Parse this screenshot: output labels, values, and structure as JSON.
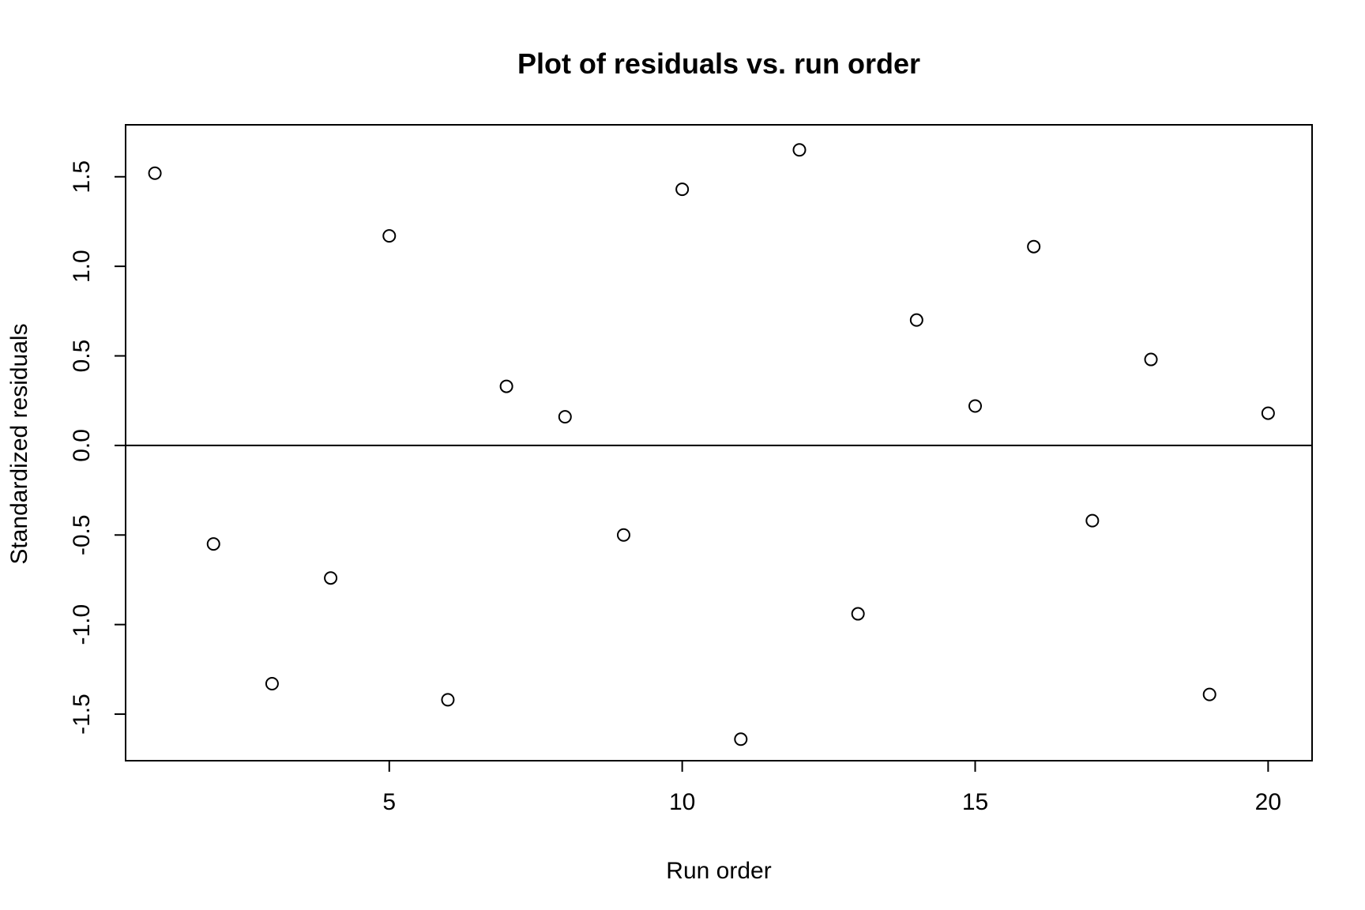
{
  "chart_data": {
    "type": "scatter",
    "title": "Plot of residuals vs. run order",
    "xlabel": "Run order",
    "ylabel": "Standardized residuals",
    "xlim": [
      0.5,
      20.75
    ],
    "ylim": [
      -1.76,
      1.79
    ],
    "x_ticks": [
      5,
      10,
      15,
      20
    ],
    "x_tick_labels": [
      "5",
      "10",
      "15",
      "20"
    ],
    "y_ticks": [
      -1.5,
      -1.0,
      -0.5,
      0.0,
      0.5,
      1.0,
      1.5
    ],
    "y_tick_labels": [
      "-1.5",
      "-1.0",
      "-0.5",
      "0.0",
      "0.5",
      "1.0",
      "1.5"
    ],
    "reference_line_y": 0,
    "marker": "open-circle",
    "grid": false,
    "series": [
      {
        "x": [
          1,
          2,
          3,
          4,
          5,
          6,
          7,
          8,
          9,
          10,
          11,
          12,
          13,
          14,
          15,
          16,
          17,
          18,
          19,
          20
        ],
        "y": [
          1.52,
          -0.55,
          -1.33,
          -0.74,
          1.17,
          -1.42,
          0.33,
          0.16,
          -0.5,
          1.43,
          -1.64,
          1.65,
          -0.94,
          0.7,
          0.22,
          1.11,
          -0.42,
          0.48,
          -1.39,
          0.18
        ]
      }
    ]
  }
}
